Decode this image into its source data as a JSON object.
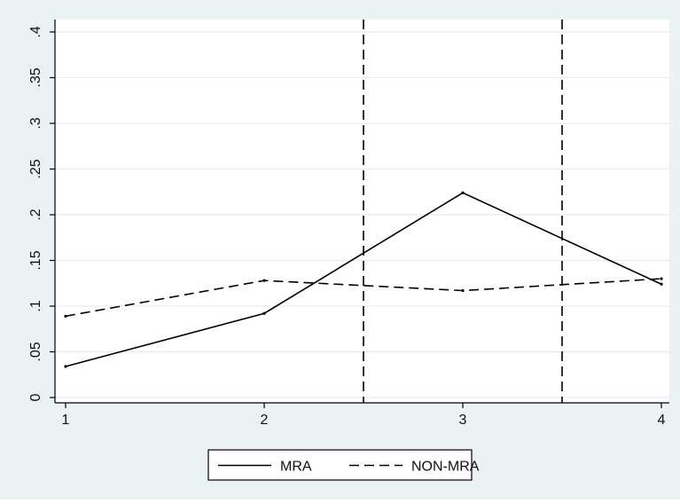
{
  "chart_data": {
    "type": "line",
    "title": "",
    "xlabel": "",
    "ylabel": "",
    "x": [
      1,
      2,
      3,
      4
    ],
    "xlim": [
      1,
      4
    ],
    "ylim": [
      0,
      0.4
    ],
    "x_ticks": [
      1,
      2,
      3,
      4
    ],
    "x_tick_labels": [
      "1",
      "2",
      "3",
      "4"
    ],
    "y_ticks": [
      0,
      0.05,
      0.1,
      0.15,
      0.2,
      0.25,
      0.3,
      0.35,
      0.4
    ],
    "y_tick_labels": [
      "0",
      ".05",
      ".1",
      ".15",
      ".2",
      ".25",
      ".3",
      ".35",
      ".4"
    ],
    "grid": "horizontal",
    "legend_position": "bottom",
    "series": [
      {
        "name": "MRA",
        "values": [
          0.034,
          0.092,
          0.224,
          0.124
        ],
        "style": "solid",
        "color": "#000000"
      },
      {
        "name": "NON-MRA",
        "values": [
          0.089,
          0.128,
          0.117,
          0.13
        ],
        "style": "dashed",
        "color": "#000000"
      }
    ],
    "vertical_reference_lines": [
      2.5,
      3.5
    ]
  },
  "colors": {
    "outer_background": "#eaf2f3",
    "plot_background": "#ffffff",
    "grid": "#e4ecee",
    "line": "#000000"
  }
}
